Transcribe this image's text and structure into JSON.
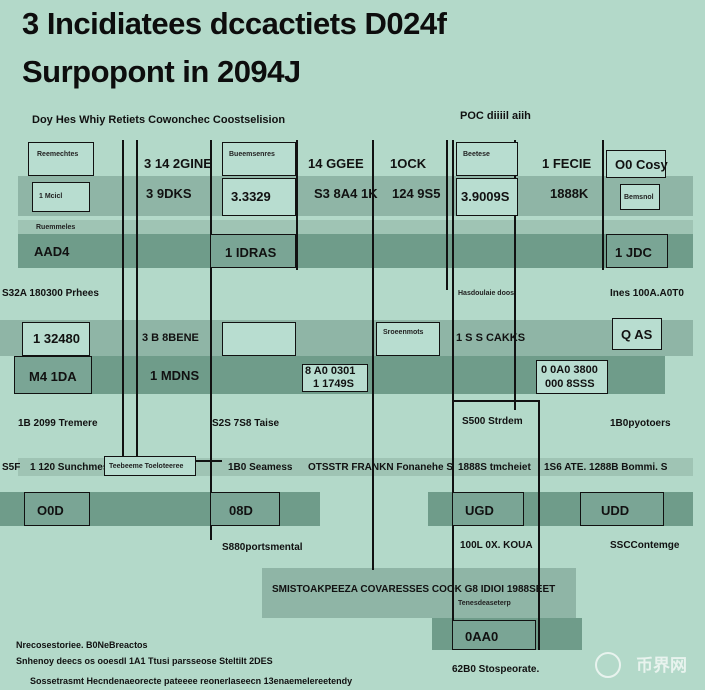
{
  "title": {
    "line1": "3 Incidiatees dccactiets D024f",
    "line2": "Surpopont in 2094J"
  },
  "header": {
    "left": "Doy Hes Whiy Retiets Cowonchec Coostselision",
    "right": "POC diiiil aiih"
  },
  "row1": {
    "c1": "Reemechtes",
    "c2": "3 14 2GINE",
    "c3": "Bueemsenres",
    "c4": "14 GGEE",
    "c5": "1OCK",
    "c6": "Beetese",
    "c7": "1 FECIE",
    "c8": "O0 Cosy"
  },
  "row2": {
    "c1": "1 Mcicl",
    "c2": "3 9DKS",
    "c3": "3.3329",
    "c4": "S3 8A4 1K",
    "c5": "124 9S5",
    "c6": "3.9009S",
    "c7": "1888K",
    "c8": "Bemsnol"
  },
  "row3": {
    "c1": "Ruemmeles"
  },
  "row4": {
    "c1": "AAD4",
    "c3": "1 IDRAS",
    "c8": "1 JDC"
  },
  "sidelabels": {
    "left1": "S32A 180300 Prhees",
    "right1": "Ines 100A.A0T0",
    "mid1": "Hasdoulaie doos"
  },
  "row5": {
    "c1": "1 32480",
    "c2": "3 B 8BENE",
    "c4": "Sroeenmots",
    "c5": "1 S S CAKKS",
    "c8": "Q AS"
  },
  "row6": {
    "c1": "M4 1DA",
    "c2": "1 MDNS",
    "c3": "8 A0 0301",
    "c3b": "1 1749S",
    "c7": "0 0A0 3800",
    "c7b": "000 8SSS"
  },
  "row7": {
    "left": "1B 2099 Tremere",
    "mid": "S2S 7S8 Taise",
    "mid2": "S500 Strdem",
    "right": "1B0pyotoers"
  },
  "row8": {
    "c0": "S5F",
    "c1": "1 120 Sunchmes",
    "c2": "Teebeeme Toeloteeree",
    "c3": "1B0 Seamess",
    "c4": "OTSSTR FRANKN Fonanehe S",
    "c5": "1888S tmcheiet",
    "c6": "1S6 ATE. 1288B Bommi. S"
  },
  "row9": {
    "c1": "O0D",
    "c3": "08D",
    "c5": "UGD",
    "c8": "UDD"
  },
  "row10": {
    "mid": "S880portsmental",
    "mid2": "100L 0X. KOUA",
    "right": "SSCContemge"
  },
  "row11": {
    "main": "SMISTOAKPEEZA COVARESSES COOK G8 IDIOI 1988SEET",
    "sub": "Tenesdeaseterp"
  },
  "row12": {
    "box": "0AA0"
  },
  "footer": {
    "line1": "Nrecosestoriee. B0NeBreactos",
    "line2": "Snhenoy deecs os ooesdl 1A1 Ttusi parsseose Steltilt 2DES",
    "line3": "Sossetrasmt Hecndenaeorecte pateeee reonerlaseecn 13enaemelereetendy",
    "right": "62B0 Stospeorate."
  },
  "watermark": "币界网"
}
